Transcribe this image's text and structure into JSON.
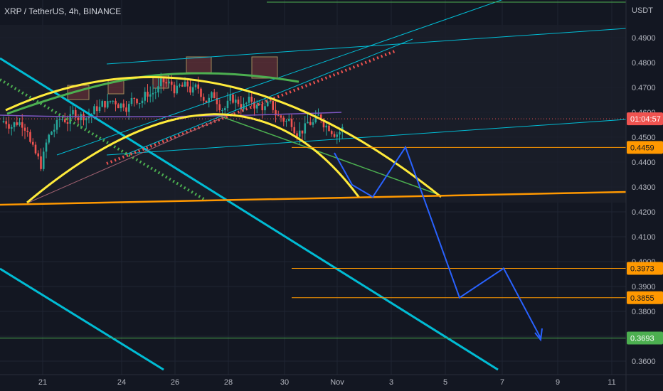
{
  "chart_data": {
    "type": "line",
    "symbol": "XRP / TetherUS, 4h, BINANCE",
    "currency": "USDT",
    "y_ticks": [
      "0.4900",
      "0.4800",
      "0.4700",
      "0.4600",
      "0.4500",
      "0.4400",
      "0.4300",
      "0.4200",
      "0.4100",
      "0.4000",
      "0.3900",
      "0.3800",
      "0.3700",
      "0.3600"
    ],
    "x_ticks": [
      "21",
      "24",
      "26",
      "28",
      "30",
      "Nov",
      "3",
      "5",
      "7",
      "9",
      "11"
    ],
    "price_tags": [
      {
        "label": "01:04:57",
        "value": 0.4574,
        "bg": "#ef5350",
        "fg": "#ffffff"
      },
      {
        "label": "0.4459",
        "value": 0.4459,
        "bg": "#ff9800",
        "fg": "#131722"
      },
      {
        "label": "0.3973",
        "value": 0.3973,
        "bg": "#ff9800",
        "fg": "#131722"
      },
      {
        "label": "0.3855",
        "value": 0.3855,
        "bg": "#ff9800",
        "fg": "#131722"
      },
      {
        "label": "0.3693",
        "value": 0.3693,
        "bg": "#4caf50",
        "fg": "#ffffff"
      }
    ],
    "projection_path": [
      {
        "x": "Nov 1",
        "y": 0.426
      },
      {
        "x": "Nov 2",
        "y": 0.446
      },
      {
        "x": "Nov 5",
        "y": 0.3855
      },
      {
        "x": "Nov 7",
        "y": 0.3973
      },
      {
        "x": "Nov 8",
        "y": 0.3693
      }
    ],
    "horizontal_levels": [
      0.4459,
      0.3973,
      0.3855,
      0.3693
    ],
    "colors": {
      "background": "#131722",
      "up": "#26a69a",
      "down": "#ef5350",
      "arc": "#ffeb3b",
      "support": "#ff9800",
      "channel": "#00bcd4",
      "ma_green": "#4caf50",
      "projection": "#2962ff"
    }
  }
}
